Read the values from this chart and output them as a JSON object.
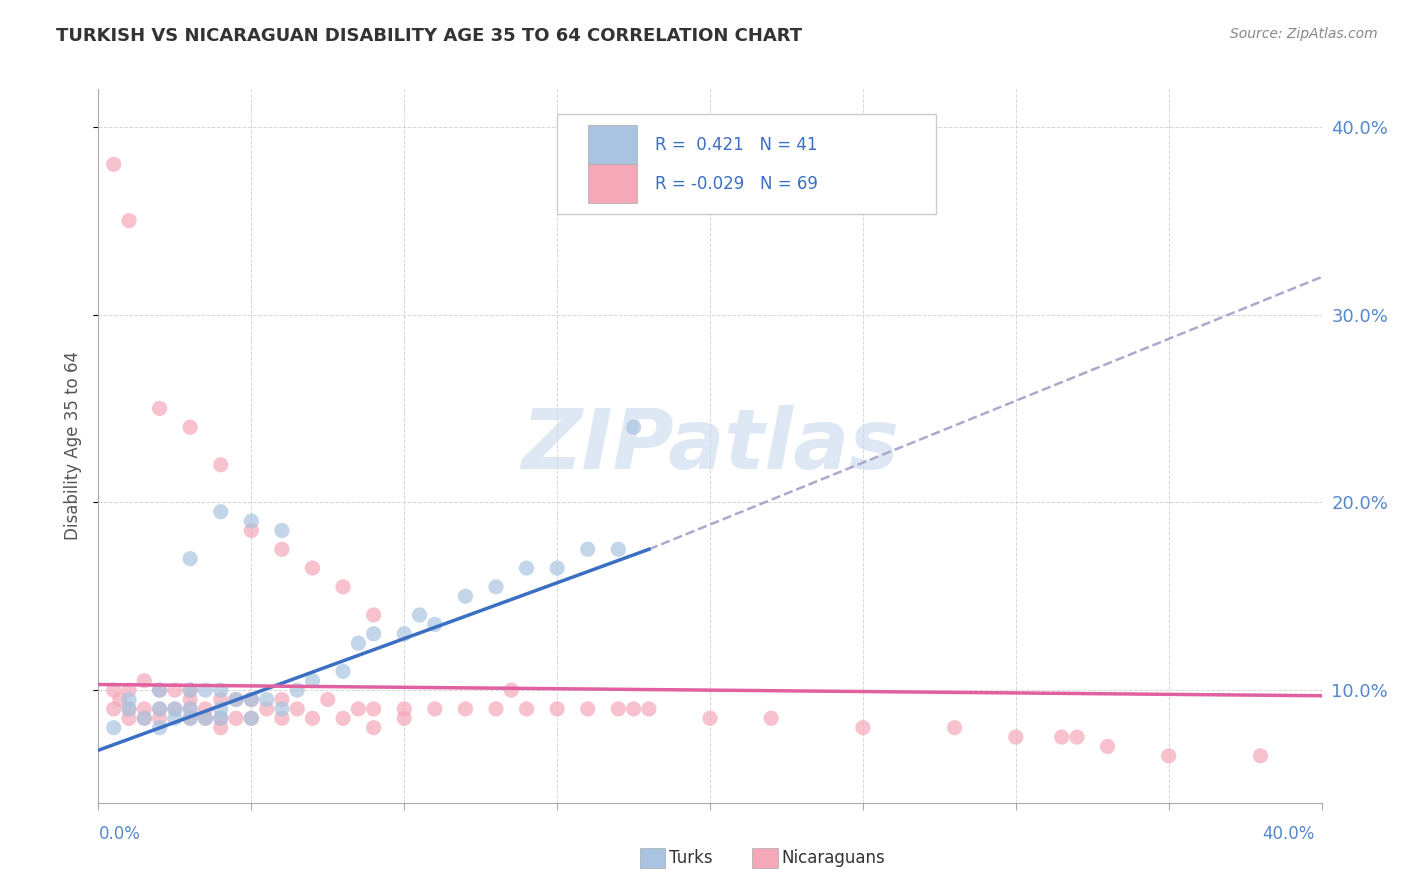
{
  "title": "TURKISH VS NICARAGUAN DISABILITY AGE 35 TO 64 CORRELATION CHART",
  "source": "Source: ZipAtlas.com",
  "ylabel": "Disability Age 35 to 64",
  "turks_color": "#a8c4e0",
  "turks_line_color": "#3a6fc4",
  "nicaraguans_color": "#f4a8b8",
  "nicaraguans_line_color": "#e060a0",
  "dash_color": "#aaaacc",
  "xmin": 0.0,
  "xmax": 0.4,
  "ymin": 0.04,
  "ymax": 0.42,
  "right_ytick_positions": [
    0.1,
    0.2,
    0.3,
    0.4
  ],
  "right_ytick_labels": [
    "10.0%",
    "20.0%",
    "30.0%",
    "40.0%"
  ],
  "turks_line_x": [
    0.0,
    0.18
  ],
  "turks_line_y": [
    0.068,
    0.175
  ],
  "dash_line_x": [
    0.18,
    0.4
  ],
  "dash_line_y": [
    0.175,
    0.32
  ],
  "nica_line_x": [
    0.0,
    0.4
  ],
  "nica_line_y": [
    0.103,
    0.097
  ],
  "turks_x": [
    0.005,
    0.01,
    0.01,
    0.015,
    0.02,
    0.02,
    0.02,
    0.025,
    0.025,
    0.03,
    0.03,
    0.03,
    0.035,
    0.035,
    0.04,
    0.04,
    0.04,
    0.045,
    0.05,
    0.05,
    0.055,
    0.06,
    0.065,
    0.07,
    0.08,
    0.085,
    0.09,
    0.1,
    0.105,
    0.11,
    0.12,
    0.13,
    0.14,
    0.15,
    0.16,
    0.17,
    0.175,
    0.03,
    0.04,
    0.05,
    0.06
  ],
  "turks_y": [
    0.08,
    0.09,
    0.095,
    0.085,
    0.08,
    0.09,
    0.1,
    0.09,
    0.085,
    0.085,
    0.09,
    0.1,
    0.085,
    0.1,
    0.085,
    0.09,
    0.1,
    0.095,
    0.085,
    0.095,
    0.095,
    0.09,
    0.1,
    0.105,
    0.11,
    0.125,
    0.13,
    0.13,
    0.14,
    0.135,
    0.15,
    0.155,
    0.165,
    0.165,
    0.175,
    0.175,
    0.24,
    0.17,
    0.195,
    0.19,
    0.185
  ],
  "nica_x": [
    0.005,
    0.005,
    0.007,
    0.01,
    0.01,
    0.01,
    0.015,
    0.015,
    0.015,
    0.02,
    0.02,
    0.02,
    0.025,
    0.025,
    0.03,
    0.03,
    0.03,
    0.03,
    0.035,
    0.035,
    0.04,
    0.04,
    0.04,
    0.045,
    0.045,
    0.05,
    0.05,
    0.055,
    0.06,
    0.06,
    0.065,
    0.07,
    0.075,
    0.08,
    0.085,
    0.09,
    0.09,
    0.1,
    0.1,
    0.11,
    0.12,
    0.13,
    0.135,
    0.14,
    0.15,
    0.16,
    0.17,
    0.175,
    0.18,
    0.2,
    0.22,
    0.25,
    0.28,
    0.3,
    0.315,
    0.32,
    0.33,
    0.35,
    0.38,
    0.005,
    0.01,
    0.02,
    0.03,
    0.04,
    0.05,
    0.06,
    0.07,
    0.08,
    0.09
  ],
  "nica_y": [
    0.09,
    0.1,
    0.095,
    0.085,
    0.09,
    0.1,
    0.085,
    0.09,
    0.105,
    0.085,
    0.09,
    0.1,
    0.09,
    0.1,
    0.085,
    0.09,
    0.095,
    0.1,
    0.085,
    0.09,
    0.08,
    0.085,
    0.095,
    0.085,
    0.095,
    0.085,
    0.095,
    0.09,
    0.085,
    0.095,
    0.09,
    0.085,
    0.095,
    0.085,
    0.09,
    0.08,
    0.09,
    0.085,
    0.09,
    0.09,
    0.09,
    0.09,
    0.1,
    0.09,
    0.09,
    0.09,
    0.09,
    0.09,
    0.09,
    0.085,
    0.085,
    0.08,
    0.08,
    0.075,
    0.075,
    0.075,
    0.07,
    0.065,
    0.065,
    0.38,
    0.35,
    0.25,
    0.24,
    0.22,
    0.185,
    0.175,
    0.165,
    0.155,
    0.14
  ],
  "watermark_text": "ZIPatlas",
  "watermark_color": "#c8d8ee",
  "watermark_fontsize": 60
}
